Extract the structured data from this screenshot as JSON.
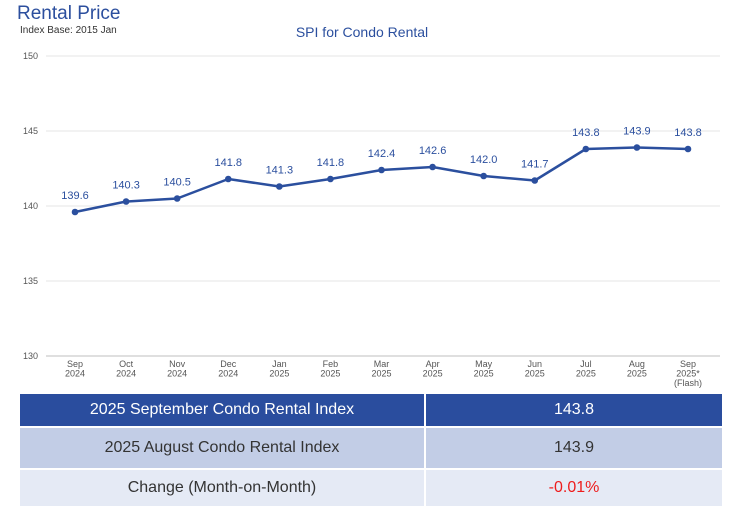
{
  "header": {
    "title": "Rental Price",
    "index_base": "Index Base: 2015 Jan"
  },
  "chart_data": {
    "type": "line",
    "title": "SPI for Condo Rental",
    "xlabel": "",
    "ylabel": "",
    "ylim": [
      130,
      150
    ],
    "yticks": [
      130,
      135,
      140,
      145,
      150
    ],
    "grid": true,
    "categories": [
      [
        "Sep",
        "2024"
      ],
      [
        "Oct",
        "2024"
      ],
      [
        "Nov",
        "2024"
      ],
      [
        "Dec",
        "2024"
      ],
      [
        "Jan",
        "2025"
      ],
      [
        "Feb",
        "2025"
      ],
      [
        "Mar",
        "2025"
      ],
      [
        "Apr",
        "2025"
      ],
      [
        "May",
        "2025"
      ],
      [
        "Jun",
        "2025"
      ],
      [
        "Jul",
        "2025"
      ],
      [
        "Aug",
        "2025"
      ],
      [
        "Sep",
        "2025*",
        "(Flash)"
      ]
    ],
    "series": [
      {
        "name": "SPI for Condo Rental",
        "values": [
          139.6,
          140.3,
          140.5,
          141.8,
          141.3,
          141.8,
          142.4,
          142.6,
          142.0,
          141.7,
          143.8,
          143.9,
          143.8
        ],
        "labels": [
          "139.6",
          "140.3",
          "140.5",
          "141.8",
          "141.3",
          "141.8",
          "142.4",
          "142.6",
          "142.0",
          "141.7",
          "143.8",
          "143.9",
          "143.8"
        ]
      }
    ],
    "colors": {
      "line": "#2b4f9e",
      "label": "#2b4f9e",
      "grid": "#e6e6e6",
      "tick": "#555555"
    }
  },
  "summary": {
    "current_label": "2025 September Condo Rental Index",
    "current_value": "143.8",
    "previous_label": "2025 August Condo Rental Index",
    "previous_value": "143.9",
    "change_label": "Change (Month-on-Month)",
    "change_value": "-0.01%"
  }
}
